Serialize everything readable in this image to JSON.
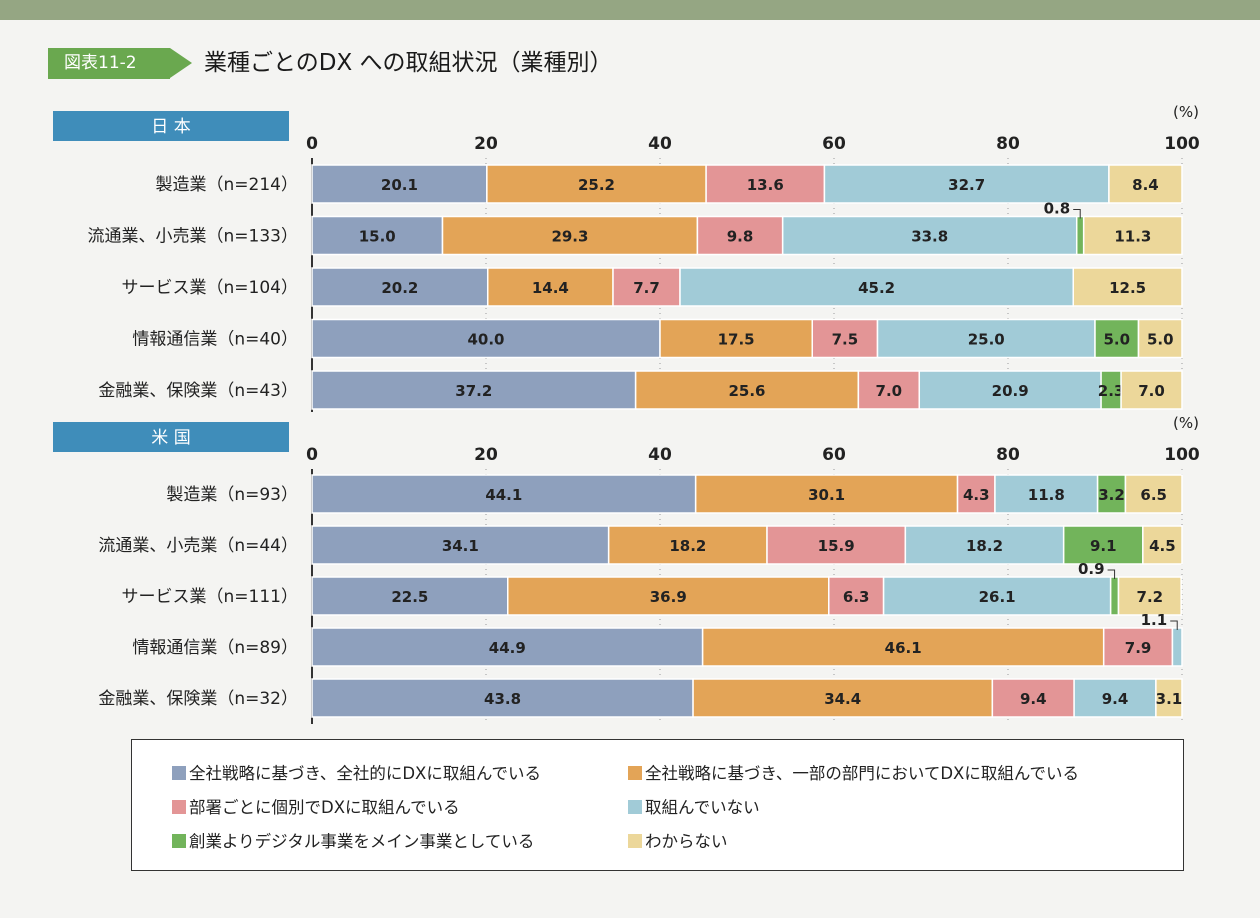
{
  "figure": {
    "tag": "図表11-2",
    "title": "業種ごとのDX への取組状況（業種別）"
  },
  "colors": {
    "s1": "#8ea0bd",
    "s2": "#e3a457",
    "s3": "#e39596",
    "s4": "#a1cbd7",
    "s5": "#72b45b",
    "s6": "#ecd79a",
    "header": "#3f8dba"
  },
  "chart_data": [
    {
      "type": "bar",
      "orientation": "horizontal",
      "stacked": true,
      "panel_label": "日 本",
      "unit_label": "(%)",
      "xlim": [
        0,
        100
      ],
      "xticks": [
        "0",
        "20",
        "40",
        "60",
        "80",
        "100"
      ],
      "categories": [
        "製造業（n=214）",
        "流通業、小売業（n=133）",
        "サービス業（n=104）",
        "情報通信業（n=40）",
        "金融業、保険業（n=43）"
      ],
      "series": [
        {
          "name": "全社戦略に基づき、全社的にDXに取組んでいる",
          "values": [
            20.1,
            15.0,
            20.2,
            40.0,
            37.2
          ]
        },
        {
          "name": "全社戦略に基づき、一部の部門においてDXに取組んでいる",
          "values": [
            25.2,
            29.3,
            14.4,
            17.5,
            25.6
          ]
        },
        {
          "name": "部署ごとに個別でDXに取組んでいる",
          "values": [
            13.6,
            9.8,
            7.7,
            7.5,
            7.0
          ]
        },
        {
          "name": "取組んでいない",
          "values": [
            32.7,
            33.8,
            45.2,
            25.0,
            20.9
          ]
        },
        {
          "name": "創業よりデジタル事業をメイン事業としている",
          "values": [
            0,
            0.8,
            0,
            5.0,
            2.3
          ]
        },
        {
          "name": "わからない",
          "values": [
            8.4,
            11.3,
            12.5,
            5.0,
            7.0
          ]
        }
      ],
      "labels": [
        [
          "20.1",
          "25.2",
          "13.6",
          "32.7",
          "",
          "8.4"
        ],
        [
          "15.0",
          "29.3",
          "9.8",
          "33.8",
          "0.8",
          "11.3"
        ],
        [
          "20.2",
          "14.4",
          "7.7",
          "45.2",
          "",
          "12.5"
        ],
        [
          "40.0",
          "17.5",
          "7.5",
          "25.0",
          "5.0",
          "5.0"
        ],
        [
          "37.2",
          "25.6",
          "7.0",
          "20.9",
          "2.3",
          "7.0"
        ]
      ],
      "callouts": [
        {
          "row": 1,
          "series": 4
        }
      ]
    },
    {
      "type": "bar",
      "orientation": "horizontal",
      "stacked": true,
      "panel_label": "米 国",
      "unit_label": "(%)",
      "xlim": [
        0,
        100
      ],
      "xticks": [
        "0",
        "20",
        "40",
        "60",
        "80",
        "100"
      ],
      "categories": [
        "製造業（n=93）",
        "流通業、小売業（n=44）",
        "サービス業（n=111）",
        "情報通信業（n=89）",
        "金融業、保険業（n=32）"
      ],
      "series": [
        {
          "name": "全社戦略に基づき、全社的にDXに取組んでいる",
          "values": [
            44.1,
            34.1,
            22.5,
            44.9,
            43.8
          ]
        },
        {
          "name": "全社戦略に基づき、一部の部門においてDXに取組んでいる",
          "values": [
            30.1,
            18.2,
            36.9,
            46.1,
            34.4
          ]
        },
        {
          "name": "部署ごとに個別でDXに取組んでいる",
          "values": [
            4.3,
            15.9,
            6.3,
            7.9,
            9.4
          ]
        },
        {
          "name": "取組んでいない",
          "values": [
            11.8,
            18.2,
            26.1,
            1.1,
            9.4
          ]
        },
        {
          "name": "創業よりデジタル事業をメイン事業としている",
          "values": [
            3.2,
            9.1,
            0.9,
            0,
            0
          ]
        },
        {
          "name": "わからない",
          "values": [
            6.5,
            4.5,
            7.2,
            0,
            3.1
          ]
        }
      ],
      "labels": [
        [
          "44.1",
          "30.1",
          "4.3",
          "11.8",
          "3.2",
          "6.5"
        ],
        [
          "34.1",
          "18.2",
          "15.9",
          "18.2",
          "9.1",
          "4.5"
        ],
        [
          "22.5",
          "36.9",
          "6.3",
          "26.1",
          "0.9",
          "7.2"
        ],
        [
          "44.9",
          "46.1",
          "7.9",
          "1.1",
          "",
          ""
        ],
        [
          "43.8",
          "34.4",
          "9.4",
          "9.4",
          "",
          "3.1"
        ]
      ],
      "callouts": [
        {
          "row": 2,
          "series": 4
        },
        {
          "row": 3,
          "series": 3
        }
      ]
    }
  ],
  "legend": {
    "items": [
      {
        "label": "全社戦略に基づき、全社的にDXに取組んでいる",
        "color_key": "s1"
      },
      {
        "label": "全社戦略に基づき、一部の部門においてDXに取組んでいる",
        "color_key": "s2"
      },
      {
        "label": "部署ごとに個別でDXに取組んでいる",
        "color_key": "s3"
      },
      {
        "label": "取組んでいない",
        "color_key": "s4"
      },
      {
        "label": "創業よりデジタル事業をメイン事業としている",
        "color_key": "s5"
      },
      {
        "label": "わからない",
        "color_key": "s6"
      }
    ]
  }
}
